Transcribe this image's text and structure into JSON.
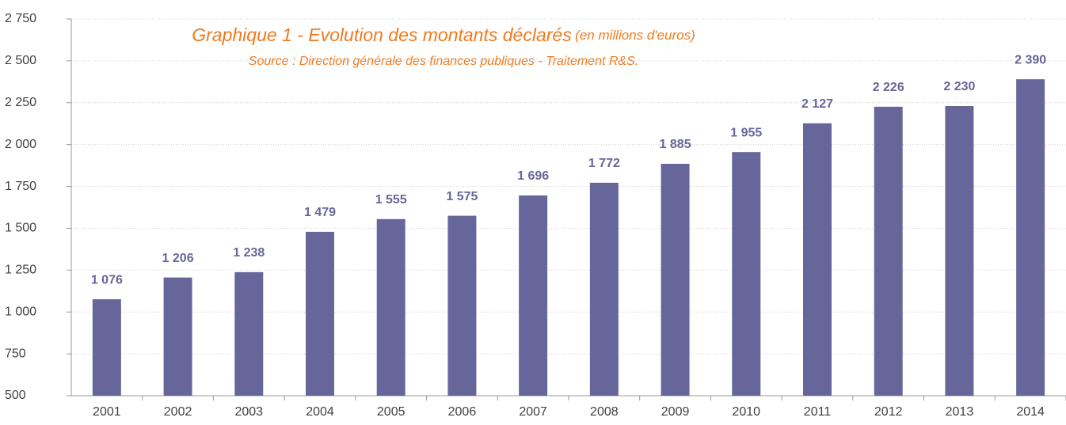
{
  "chart_data": {
    "type": "bar",
    "title": "Graphique 1 - Evolution des montants déclarés",
    "title_note": "(en millions d'euros)",
    "subtitle": "Source : Direction générale des finances publiques - Traitement R&S.",
    "categories": [
      "2001",
      "2002",
      "2003",
      "2004",
      "2005",
      "2006",
      "2007",
      "2008",
      "2009",
      "2010",
      "2011",
      "2012",
      "2013",
      "2014"
    ],
    "values": [
      1076,
      1206,
      1238,
      1479,
      1555,
      1575,
      1696,
      1772,
      1885,
      1955,
      2127,
      2226,
      2230,
      2390
    ],
    "value_labels": [
      "1 076",
      "1 206",
      "1 238",
      "1 479",
      "1 555",
      "1 575",
      "1 696",
      "1 772",
      "1 885",
      "1 955",
      "2 127",
      "2 226",
      "2 230",
      "2 390"
    ],
    "color": "#67669a",
    "ylim": [
      500,
      2750
    ],
    "yticks": [
      500,
      750,
      {
        "value": 1000,
        "label": "1 000"
      },
      {
        "value": 1250,
        "label": "1 250"
      },
      {
        "value": 1500,
        "label": "1 500"
      },
      {
        "value": 1750,
        "label": "1 750"
      },
      {
        "value": 2000,
        "label": "2 000"
      },
      {
        "value": 2250,
        "label": "2 250"
      },
      {
        "value": 2500,
        "label": "2 500"
      },
      {
        "value": 2750,
        "label": "2 750"
      }
    ],
    "grid": true
  }
}
